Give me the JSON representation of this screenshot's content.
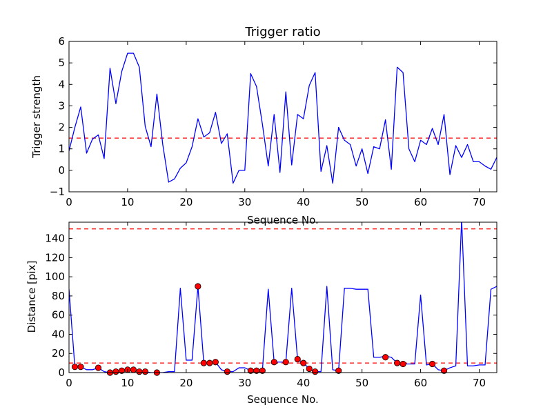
{
  "chart_data": [
    {
      "type": "line",
      "title": "Trigger ratio",
      "xlabel": "Sequence No.",
      "ylabel": "Trigger strength",
      "xlim": [
        0,
        73
      ],
      "ylim": [
        -1,
        6
      ],
      "xticks": [
        0,
        10,
        20,
        30,
        40,
        50,
        60,
        70
      ],
      "yticks": [
        -1,
        0,
        1,
        2,
        3,
        4,
        5,
        6
      ],
      "grid": false,
      "line_color": "#0000ff",
      "threshold": {
        "value": 1.5,
        "color": "#ff0000",
        "style": "dashed"
      },
      "series": [
        {
          "x": [
            0,
            1,
            2,
            3,
            4,
            5,
            6,
            7,
            8,
            9,
            10,
            11,
            12,
            13,
            14,
            15,
            16,
            17,
            18,
            19,
            20,
            21,
            22,
            23,
            24,
            25,
            26,
            27,
            28,
            29,
            30,
            31,
            32,
            33,
            34,
            35,
            36,
            37,
            38,
            39,
            40,
            41,
            42,
            43,
            44,
            45,
            46,
            47,
            48,
            49,
            50,
            51,
            52,
            53,
            54,
            55,
            56,
            57,
            58,
            59,
            60,
            61,
            62,
            63,
            64,
            65,
            66,
            67,
            68,
            69,
            70,
            71,
            72,
            73
          ],
          "y": [
            0.9,
            2.0,
            2.95,
            0.8,
            1.45,
            1.65,
            0.55,
            4.75,
            3.1,
            4.6,
            5.45,
            5.45,
            4.8,
            2.05,
            1.1,
            3.55,
            1.2,
            -0.55,
            -0.4,
            0.1,
            0.35,
            1.1,
            2.4,
            1.55,
            1.75,
            2.7,
            1.25,
            1.7,
            -0.6,
            0.0,
            0.0,
            4.5,
            3.9,
            2.15,
            0.2,
            2.6,
            -0.1,
            3.65,
            0.25,
            2.6,
            2.4,
            3.95,
            4.55,
            -0.05,
            1.15,
            -0.6,
            2.0,
            1.4,
            1.2,
            0.2,
            1.0,
            -0.15,
            1.1,
            1.0,
            2.35,
            0.05,
            4.8,
            4.55,
            1.0,
            0.4,
            1.4,
            1.2,
            1.95,
            1.2,
            2.6,
            -0.2,
            1.15,
            0.6,
            1.2,
            0.4,
            0.4,
            0.2,
            0.05,
            0.6
          ]
        }
      ]
    },
    {
      "type": "line",
      "title": "",
      "xlabel": "Sequence No.",
      "ylabel": "Distance [pix]",
      "xlim": [
        0,
        73
      ],
      "ylim": [
        0,
        157
      ],
      "xticks": [
        0,
        10,
        20,
        30,
        40,
        50,
        60,
        70
      ],
      "yticks": [
        0,
        20,
        40,
        60,
        80,
        100,
        120,
        140
      ],
      "grid": false,
      "line_color": "#0000ff",
      "marker_color": "#ff0000",
      "thresholds": [
        {
          "value": 10,
          "color": "#ff0000",
          "style": "dashed"
        },
        {
          "value": 150,
          "color": "#ff0000",
          "style": "dashed"
        }
      ],
      "series": [
        {
          "x": [
            0,
            1,
            2,
            3,
            4,
            5,
            6,
            7,
            8,
            9,
            10,
            11,
            12,
            13,
            14,
            15,
            16,
            17,
            18,
            19,
            20,
            21,
            22,
            23,
            24,
            25,
            26,
            27,
            28,
            29,
            30,
            31,
            32,
            33,
            34,
            35,
            36,
            37,
            38,
            39,
            40,
            41,
            42,
            43,
            44,
            45,
            46,
            47,
            48,
            49,
            50,
            51,
            52,
            53,
            54,
            55,
            56,
            57,
            58,
            59,
            60,
            61,
            62,
            63,
            64,
            65,
            66,
            67,
            68,
            69,
            70,
            71,
            72,
            73
          ],
          "y": [
            87,
            6,
            6,
            3,
            3,
            5,
            1,
            0,
            1,
            2,
            3,
            3,
            1,
            1,
            0,
            0,
            0,
            1,
            1,
            88,
            13,
            13,
            90,
            10,
            10,
            11,
            3,
            1,
            1,
            5,
            5,
            2,
            2,
            2,
            87,
            11,
            11,
            11,
            88,
            14,
            10,
            4,
            1,
            1,
            90,
            3,
            2,
            88,
            88,
            87,
            87,
            87,
            16,
            16,
            17,
            16,
            10,
            9,
            9,
            9,
            81,
            8,
            9,
            3,
            2,
            5,
            7,
            160,
            7,
            7,
            8,
            8,
            87,
            90
          ]
        }
      ],
      "markers": {
        "x": [
          1,
          2,
          5,
          7,
          8,
          9,
          10,
          11,
          12,
          13,
          15,
          22,
          23,
          24,
          25,
          27,
          31,
          32,
          33,
          35,
          37,
          39,
          40,
          41,
          42,
          46,
          54,
          56,
          57,
          62,
          64
        ],
        "y": [
          6,
          6,
          5,
          0,
          1,
          2,
          3,
          3,
          1,
          1,
          0,
          90,
          10,
          10,
          11,
          1,
          2,
          2,
          2,
          11,
          11,
          14,
          10,
          4,
          1,
          2,
          16,
          10,
          9,
          9,
          2
        ]
      }
    }
  ]
}
